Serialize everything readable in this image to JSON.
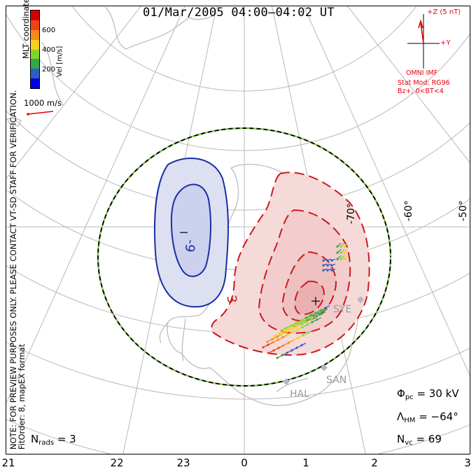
{
  "title": "01/Mar/2005 04:00–04:02 UT",
  "note_line1": "NOTE: FOR PREVIEW PURPOSES ONLY. PLEASE CONTACT VT-SD STAFF FOR VERIFICATION.",
  "note_line2": "FitOrder: 8, mapEX format",
  "coords_label": "MLT coordinates",
  "colorbar": {
    "label": "Vel [m/s]",
    "ticks": [
      "600",
      "400",
      "200"
    ],
    "colors": [
      "#0000e6",
      "#2f5fbe",
      "#33a84c",
      "#82d62a",
      "#f5d21c",
      "#f58a1c",
      "#f0421a",
      "#d40000"
    ]
  },
  "scale_vector": "1000 m/s",
  "imf": {
    "z_label": "+Z (5 nT)",
    "y_label": "+Y",
    "source": "OMNI IMF",
    "stat_model": "Stat Mod: RG96",
    "condition": "Bz+, 0<BT<4"
  },
  "latitude_labels": [
    "-70°",
    "-60°",
    "-50°"
  ],
  "contour_labels": [
    "-9",
    "3"
  ],
  "stations": [
    "SYE",
    "SAN",
    "HAL"
  ],
  "stats": {
    "phi_symbol": "Φ",
    "phi_sub": "pc",
    "phi_value": "= 30 kV",
    "lambda_symbol": "Λ",
    "lambda_sub": "HM",
    "lambda_value": "= −64°",
    "nvc_symbol": "N",
    "nvc_sub": "vc",
    "nvc_value": "= 69",
    "nrads_symbol": "N",
    "nrads_sub": "rads",
    "nrads_value": "= 3"
  },
  "mlt_ticks": [
    "21",
    "22",
    "23",
    "0",
    "1",
    "2",
    "3"
  ],
  "colors": {
    "negative_cell": "#1a2fa8",
    "positive_cell": "#cc1a1a",
    "hmb": "#000000",
    "hmb_dash": "#7fd63a",
    "grid": "#b8b8b8",
    "coast": "#bfbfbf"
  }
}
